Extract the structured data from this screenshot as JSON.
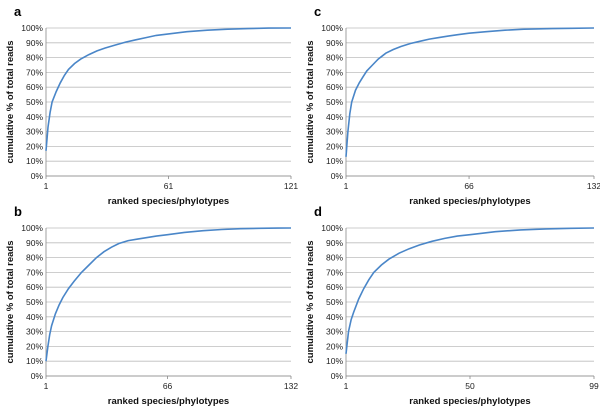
{
  "chart_data": [
    {
      "panel": "a",
      "type": "line",
      "xlabel": "ranked species/phylotypes",
      "ylabel": "cumulative % of total reads",
      "xticks": [
        "1",
        "61",
        "121"
      ],
      "xlim": [
        1,
        121
      ],
      "yticks": [
        "0%",
        "10%",
        "20%",
        "30%",
        "40%",
        "50%",
        "60%",
        "70%",
        "80%",
        "90%",
        "100%"
      ],
      "ylim": [
        0,
        100
      ],
      "grid": true,
      "series": [
        {
          "x": [
            1,
            2,
            3,
            4,
            6,
            8,
            10,
            12,
            15,
            18,
            22,
            26,
            30,
            35,
            40,
            45,
            50,
            55,
            61,
            70,
            80,
            90,
            100,
            110,
            121
          ],
          "y": [
            17,
            33,
            43,
            50,
            57,
            63,
            68,
            72,
            76,
            79,
            82,
            84.5,
            86.5,
            88.5,
            90.5,
            92,
            93.5,
            95,
            96,
            97.5,
            98.5,
            99.2,
            99.6,
            99.9,
            100
          ]
        }
      ]
    },
    {
      "panel": "b",
      "type": "line",
      "xlabel": "ranked species/phylotypes",
      "ylabel": "cumulative % of total reads",
      "xticks": [
        "1",
        "66",
        "132"
      ],
      "xlim": [
        1,
        132
      ],
      "yticks": [
        "0%",
        "10%",
        "20%",
        "30%",
        "40%",
        "50%",
        "60%",
        "70%",
        "80%",
        "90%",
        "100%"
      ],
      "ylim": [
        0,
        100
      ],
      "grid": true,
      "series": [
        {
          "x": [
            1,
            2,
            3,
            4,
            6,
            8,
            10,
            13,
            16,
            20,
            24,
            28,
            32,
            36,
            40,
            45,
            50,
            55,
            60,
            66,
            75,
            85,
            95,
            105,
            115,
            125,
            132
          ],
          "y": [
            10,
            20,
            28,
            34,
            42,
            48,
            53,
            59,
            64,
            70,
            75,
            80,
            84,
            87,
            89.5,
            91.5,
            92.5,
            93.5,
            94.5,
            95.5,
            97,
            98.2,
            99,
            99.5,
            99.8,
            99.9,
            100
          ]
        }
      ]
    },
    {
      "panel": "c",
      "type": "line",
      "xlabel": "ranked species/phylotypes",
      "ylabel": "cumulative % of total reads",
      "xticks": [
        "1",
        "66",
        "132"
      ],
      "xlim": [
        1,
        132
      ],
      "yticks": [
        "0%",
        "10%",
        "20%",
        "30%",
        "40%",
        "50%",
        "60%",
        "70%",
        "80%",
        "90%",
        "100%"
      ],
      "ylim": [
        0,
        100
      ],
      "grid": true,
      "series": [
        {
          "x": [
            1,
            2,
            3,
            4,
            6,
            8,
            10,
            12,
            15,
            18,
            22,
            26,
            30,
            35,
            40,
            45,
            50,
            55,
            60,
            66,
            75,
            85,
            95,
            110,
            120,
            132
          ],
          "y": [
            13,
            30,
            42,
            50,
            58,
            63,
            67,
            71,
            75,
            79,
            83,
            85.5,
            87.5,
            89.5,
            91,
            92.5,
            93.5,
            94.5,
            95.5,
            96.5,
            97.5,
            98.5,
            99.2,
            99.6,
            99.8,
            100
          ]
        }
      ]
    },
    {
      "panel": "d",
      "type": "line",
      "xlabel": "ranked species/phylotypes",
      "ylabel": "cumulative % of total reads",
      "xticks": [
        "1",
        "50",
        "99"
      ],
      "xlim": [
        1,
        99
      ],
      "yticks": [
        "0%",
        "10%",
        "20%",
        "30%",
        "40%",
        "50%",
        "60%",
        "70%",
        "80%",
        "90%",
        "100%"
      ],
      "ylim": [
        0,
        100
      ],
      "grid": true,
      "series": [
        {
          "x": [
            1,
            2,
            3,
            4,
            6,
            8,
            10,
            12,
            15,
            18,
            22,
            26,
            30,
            35,
            40,
            45,
            50,
            55,
            60,
            70,
            80,
            90,
            99
          ],
          "y": [
            15,
            30,
            38,
            43,
            52,
            59,
            65,
            70,
            75,
            79,
            83,
            86,
            88.5,
            91,
            93,
            94.5,
            95.5,
            96.5,
            97.5,
            98.7,
            99.4,
            99.8,
            100
          ]
        }
      ]
    }
  ]
}
